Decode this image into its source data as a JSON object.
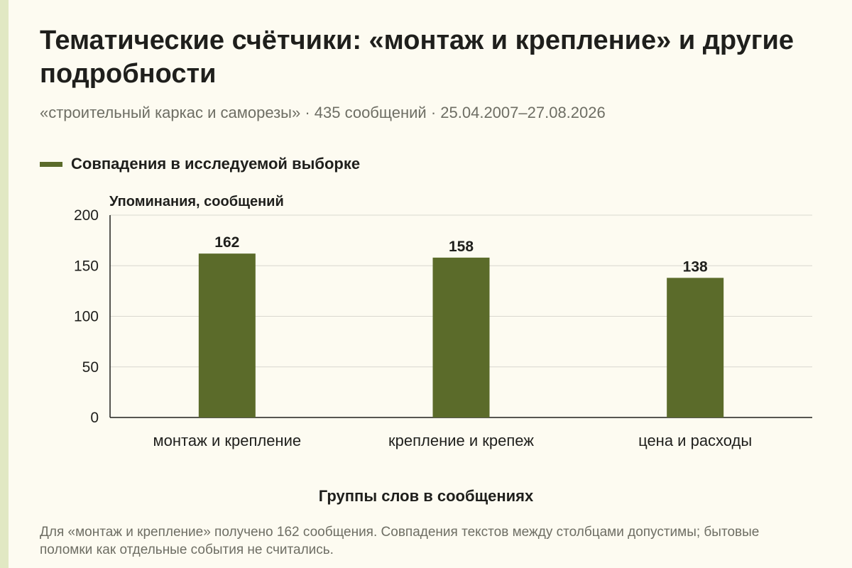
{
  "header": {
    "title": "Тематические счётчики: «монтаж и крепление» и другие подробности",
    "subtitle": "«строительный каркас и саморезы» · 435 сообщений · 25.04.2007–27.08.2026"
  },
  "legend": {
    "label": "Совпадения в исследуемой выборке"
  },
  "footnote": "Для «монтаж и крепление» получено 162 сообщения. Совпадения текстов между столбцами допустимы; бытовые поломки как отдельные события не считались.",
  "colors": {
    "bar": "#5b6b2a",
    "grid": "#d9d8cf",
    "axis": "#1f1f1c",
    "background": "#fdfbf1",
    "accent_stripe": "#e1e8c3"
  },
  "chart_data": {
    "type": "bar",
    "title": "Тематические счётчики: «монтаж и крепление» и другие подробности",
    "subtitle": "«строительный каркас и саморезы» · 435 сообщений · 25.04.2007–27.08.2026",
    "xlabel": "Группы слов в сообщениях",
    "ylabel": "Упоминания, сообщений",
    "categories": [
      "монтаж и крепление",
      "крепление и крепеж",
      "цена и расходы"
    ],
    "series": [
      {
        "name": "Совпадения в исследуемой выборке",
        "values": [
          162,
          158,
          138
        ]
      }
    ],
    "ylim": [
      0,
      200
    ],
    "yticks": [
      0,
      50,
      100,
      150,
      200
    ],
    "grid": true,
    "legend_position": "top-left",
    "data_labels": true
  }
}
